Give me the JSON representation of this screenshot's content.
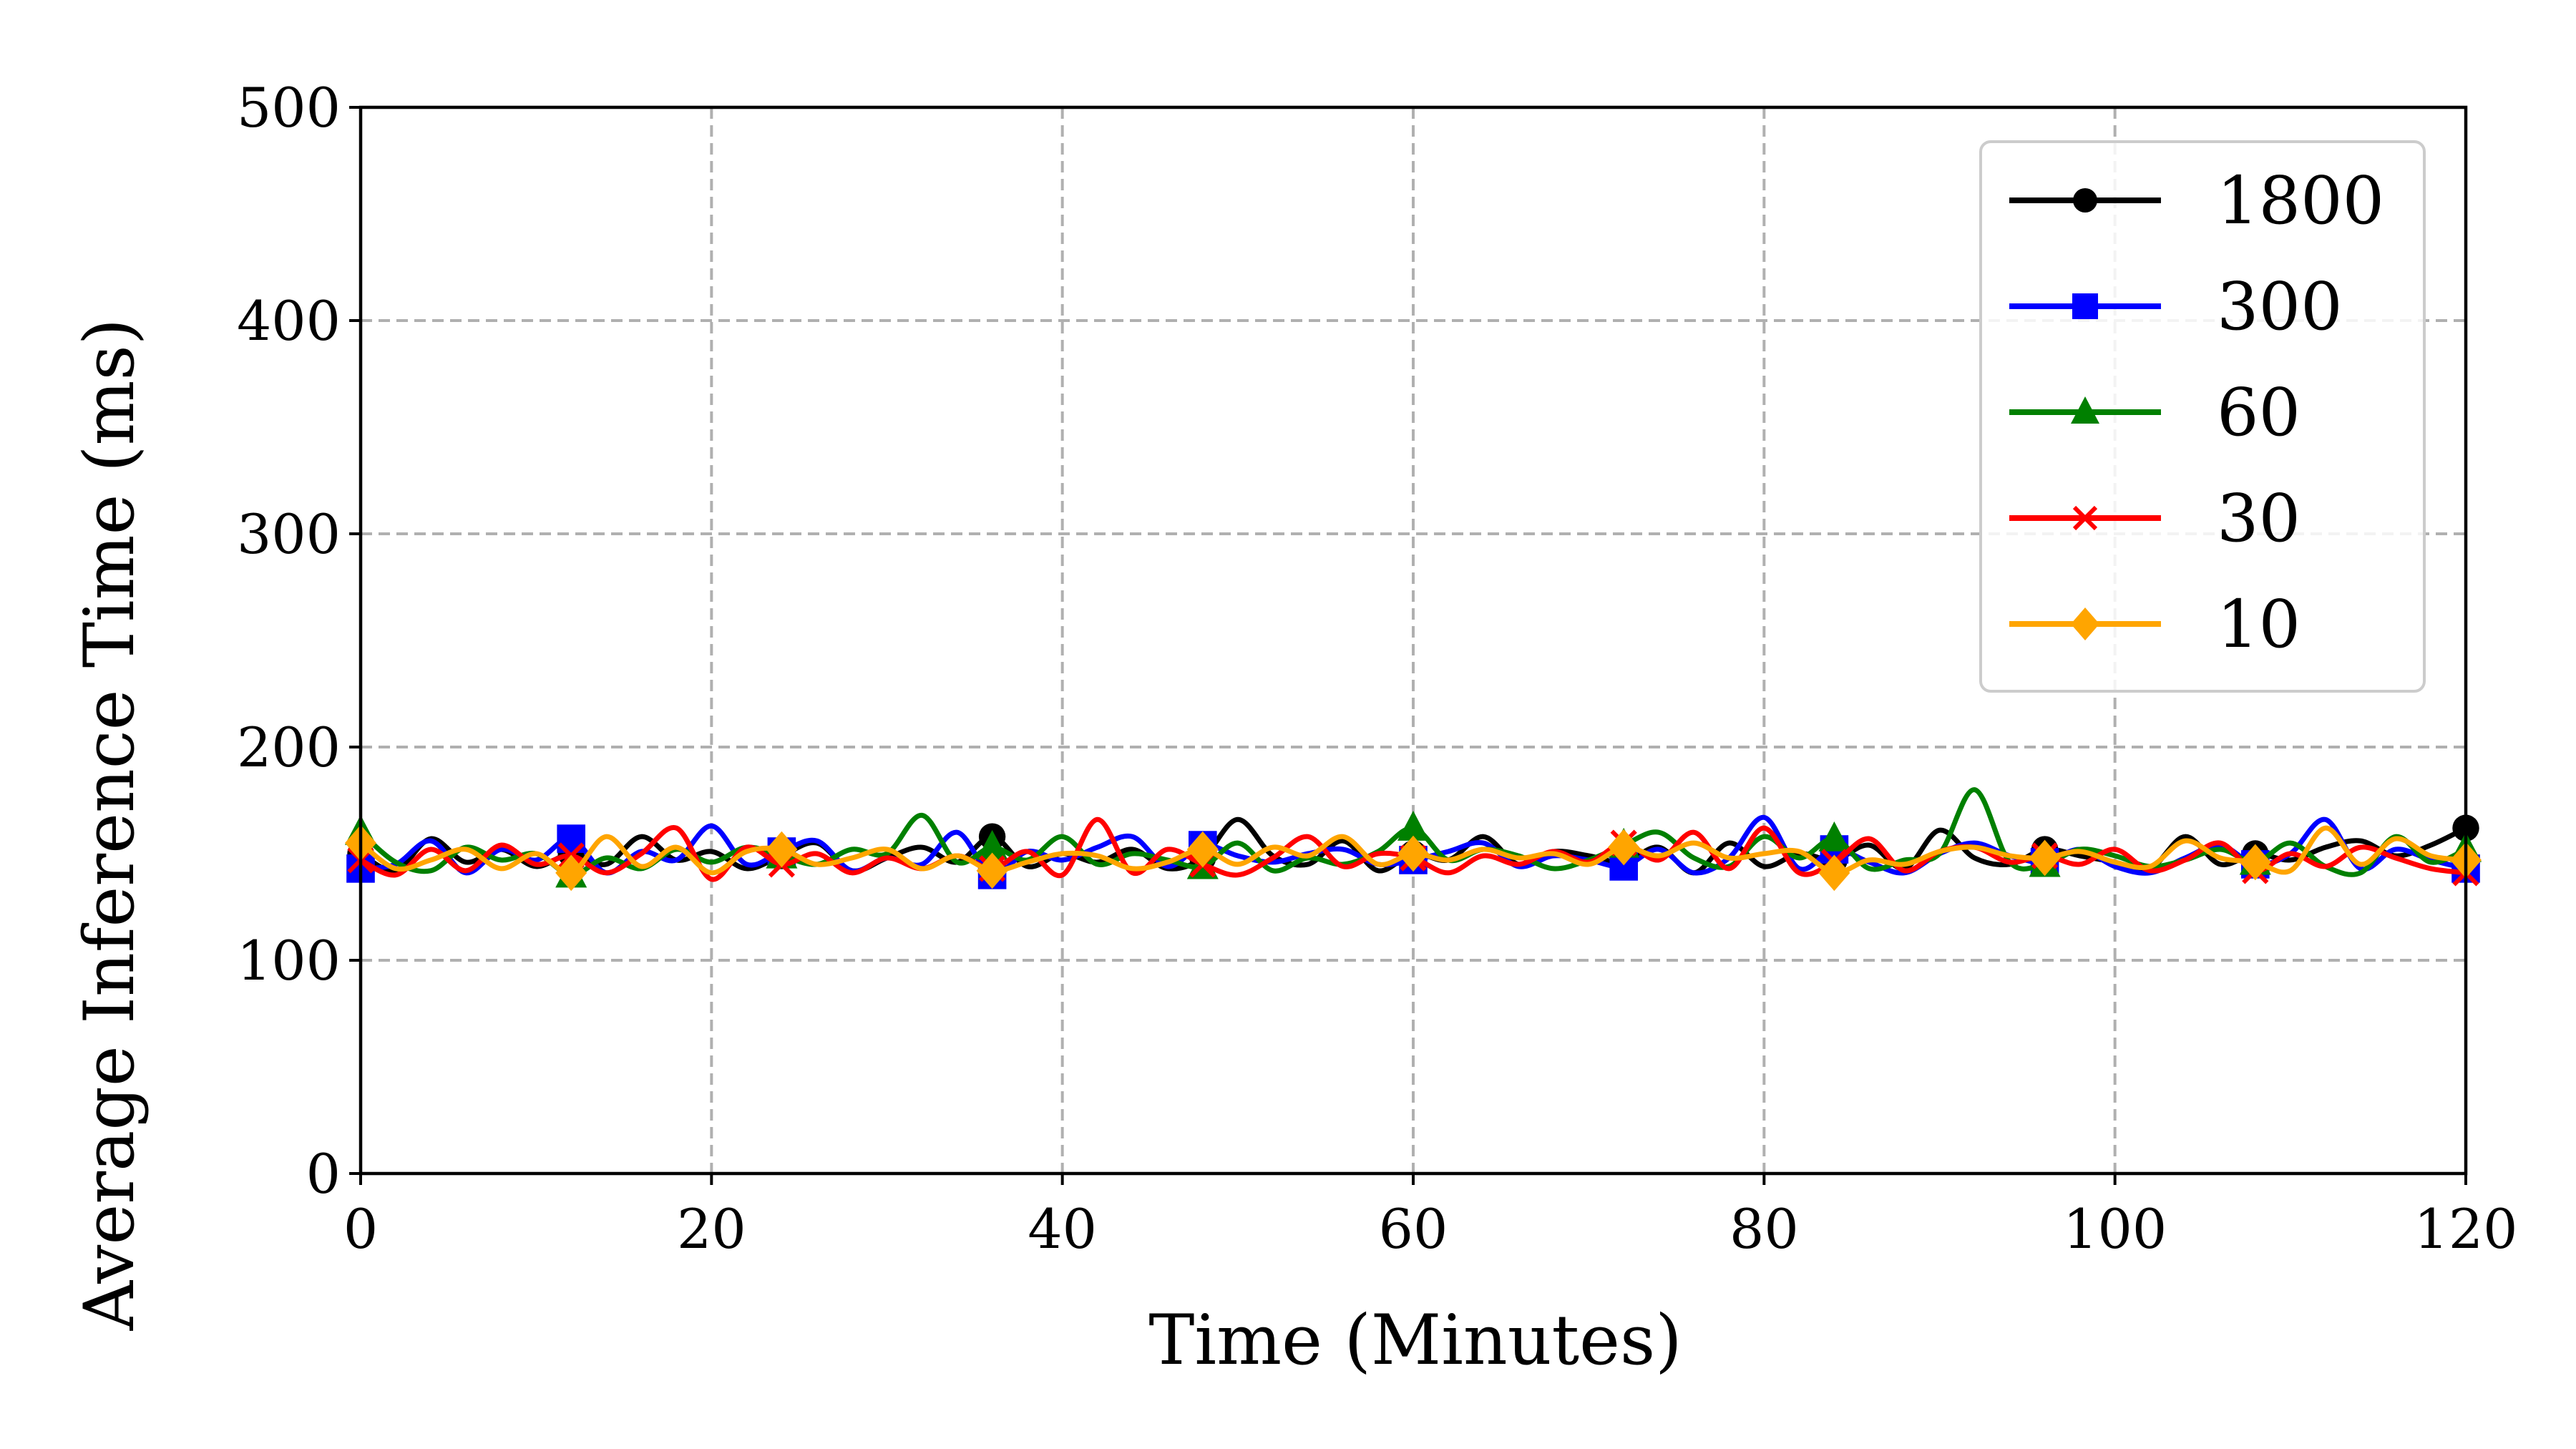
{
  "chart_data": {
    "type": "line",
    "title": "",
    "xlabel": "Time (Minutes)",
    "ylabel": "Average Inference Time (ms)",
    "xlim": [
      0,
      120
    ],
    "ylim": [
      0,
      500
    ],
    "x_ticks": [
      0,
      20,
      40,
      60,
      80,
      100,
      120
    ],
    "y_ticks": [
      0,
      100,
      200,
      300,
      400,
      500
    ],
    "grid": true,
    "legend_position": "top-right",
    "x": [
      0,
      2,
      4,
      6,
      8,
      10,
      12,
      14,
      16,
      18,
      20,
      22,
      24,
      26,
      28,
      30,
      32,
      34,
      36,
      38,
      40,
      42,
      44,
      46,
      48,
      50,
      52,
      54,
      56,
      58,
      60,
      62,
      64,
      66,
      68,
      70,
      72,
      74,
      76,
      78,
      80,
      82,
      84,
      86,
      88,
      90,
      92,
      94,
      96,
      98,
      100,
      102,
      104,
      106,
      108,
      110,
      112,
      114,
      116,
      118,
      120
    ],
    "marker_every": 6,
    "series": [
      {
        "name": "1800",
        "color": "#000000",
        "marker": "circle",
        "values": [
          150,
          142,
          157,
          146,
          152,
          144,
          150,
          145,
          158,
          147,
          151,
          143,
          149,
          155,
          142,
          148,
          153,
          146,
          158,
          144,
          150,
          146,
          152,
          143,
          148,
          166,
          149,
          145,
          156,
          142,
          150,
          147,
          158,
          145,
          151,
          149,
          146,
          153,
          141,
          155,
          144,
          150,
          147,
          154,
          143,
          161,
          148,
          145,
          152,
          149,
          146,
          143,
          158,
          145,
          150,
          147,
          153,
          156,
          149,
          154,
          162
        ]
      },
      {
        "name": "300",
        "color": "#0000ff",
        "marker": "square",
        "values": [
          143,
          145,
          156,
          141,
          152,
          147,
          157,
          141,
          151,
          147,
          163,
          145,
          151,
          156,
          142,
          148,
          145,
          160,
          140,
          151,
          147,
          153,
          158,
          144,
          154,
          149,
          146,
          150,
          152,
          145,
          147,
          151,
          155,
          144,
          149,
          147,
          144,
          152,
          141,
          148,
          167,
          143,
          152,
          146,
          141,
          150,
          155,
          149,
          146,
          152,
          144,
          141,
          148,
          154,
          145,
          150,
          166,
          143,
          152,
          147,
          143
        ]
      },
      {
        "name": "60",
        "color": "#008000",
        "marker": "triangle",
        "values": [
          160,
          146,
          142,
          153,
          147,
          150,
          140,
          148,
          143,
          152,
          146,
          153,
          149,
          145,
          152,
          150,
          168,
          146,
          153,
          147,
          158,
          145,
          150,
          147,
          144,
          155,
          142,
          148,
          145,
          151,
          162,
          147,
          152,
          149,
          143,
          147,
          154,
          160,
          148,
          144,
          158,
          148,
          157,
          143,
          147,
          150,
          180,
          146,
          145,
          152,
          149,
          144,
          147,
          152,
          146,
          155,
          144,
          141,
          158,
          146,
          152
        ]
      },
      {
        "name": "30",
        "color": "#ff0000",
        "marker": "x",
        "values": [
          147,
          140,
          152,
          142,
          154,
          145,
          149,
          141,
          150,
          162,
          138,
          153,
          145,
          150,
          141,
          148,
          143,
          149,
          143,
          151,
          140,
          166,
          141,
          152,
          145,
          140,
          148,
          158,
          144,
          150,
          148,
          141,
          149,
          145,
          151,
          146,
          155,
          147,
          160,
          143,
          162,
          141,
          146,
          157,
          142,
          151,
          153,
          146,
          149,
          145,
          152,
          142,
          147,
          155,
          142,
          150,
          144,
          153,
          148,
          143,
          141
        ]
      },
      {
        "name": "10",
        "color": "#ffa500",
        "marker": "diamond",
        "values": [
          155,
          143,
          147,
          152,
          143,
          150,
          141,
          158,
          144,
          153,
          141,
          151,
          152,
          145,
          148,
          152,
          143,
          149,
          142,
          146,
          150,
          149,
          143,
          146,
          152,
          145,
          153,
          149,
          158,
          145,
          150,
          147,
          152,
          148,
          150,
          145,
          153,
          149,
          155,
          148,
          150,
          151,
          141,
          147,
          145,
          151,
          153,
          149,
          148,
          151,
          146,
          144,
          156,
          148,
          146,
          142,
          162,
          145,
          157,
          149,
          147
        ]
      }
    ]
  }
}
